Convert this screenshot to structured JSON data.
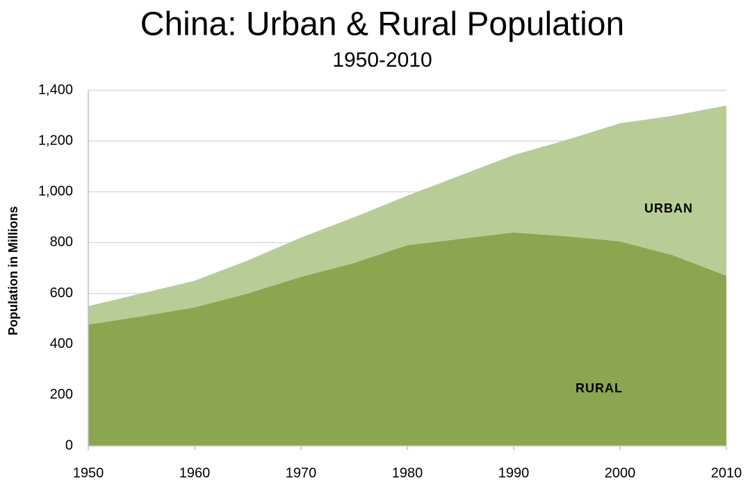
{
  "chart_data": {
    "type": "stacked_area",
    "title": "China: Urban & Rural Population",
    "subtitle": "1950-2010",
    "y_label": "Population in Millions",
    "x": [
      1950,
      1955,
      1960,
      1965,
      1970,
      1975,
      1980,
      1985,
      1990,
      1995,
      2000,
      2005,
      2010
    ],
    "series": [
      {
        "name": "RURAL",
        "color": "#8aa64f",
        "values": [
          477,
          510,
          545,
          600,
          665,
          720,
          790,
          815,
          840,
          825,
          805,
          750,
          670
        ]
      },
      {
        "name": "URBAN",
        "color": "#b8cd96",
        "values": [
          73,
          90,
          105,
          130,
          155,
          180,
          195,
          250,
          305,
          380,
          465,
          550,
          670
        ]
      }
    ],
    "xlim": [
      1950,
      2010
    ],
    "xticks": [
      1950,
      1960,
      1970,
      1980,
      1990,
      2000,
      2010
    ],
    "ylim": [
      0,
      1400
    ],
    "yticks": [
      0,
      200,
      400,
      600,
      800,
      {
        "value": 1000,
        "label": "1,000"
      },
      {
        "value": 1200,
        "label": "1,200"
      },
      {
        "value": 1400,
        "label": "1,400"
      }
    ],
    "grid": true
  }
}
